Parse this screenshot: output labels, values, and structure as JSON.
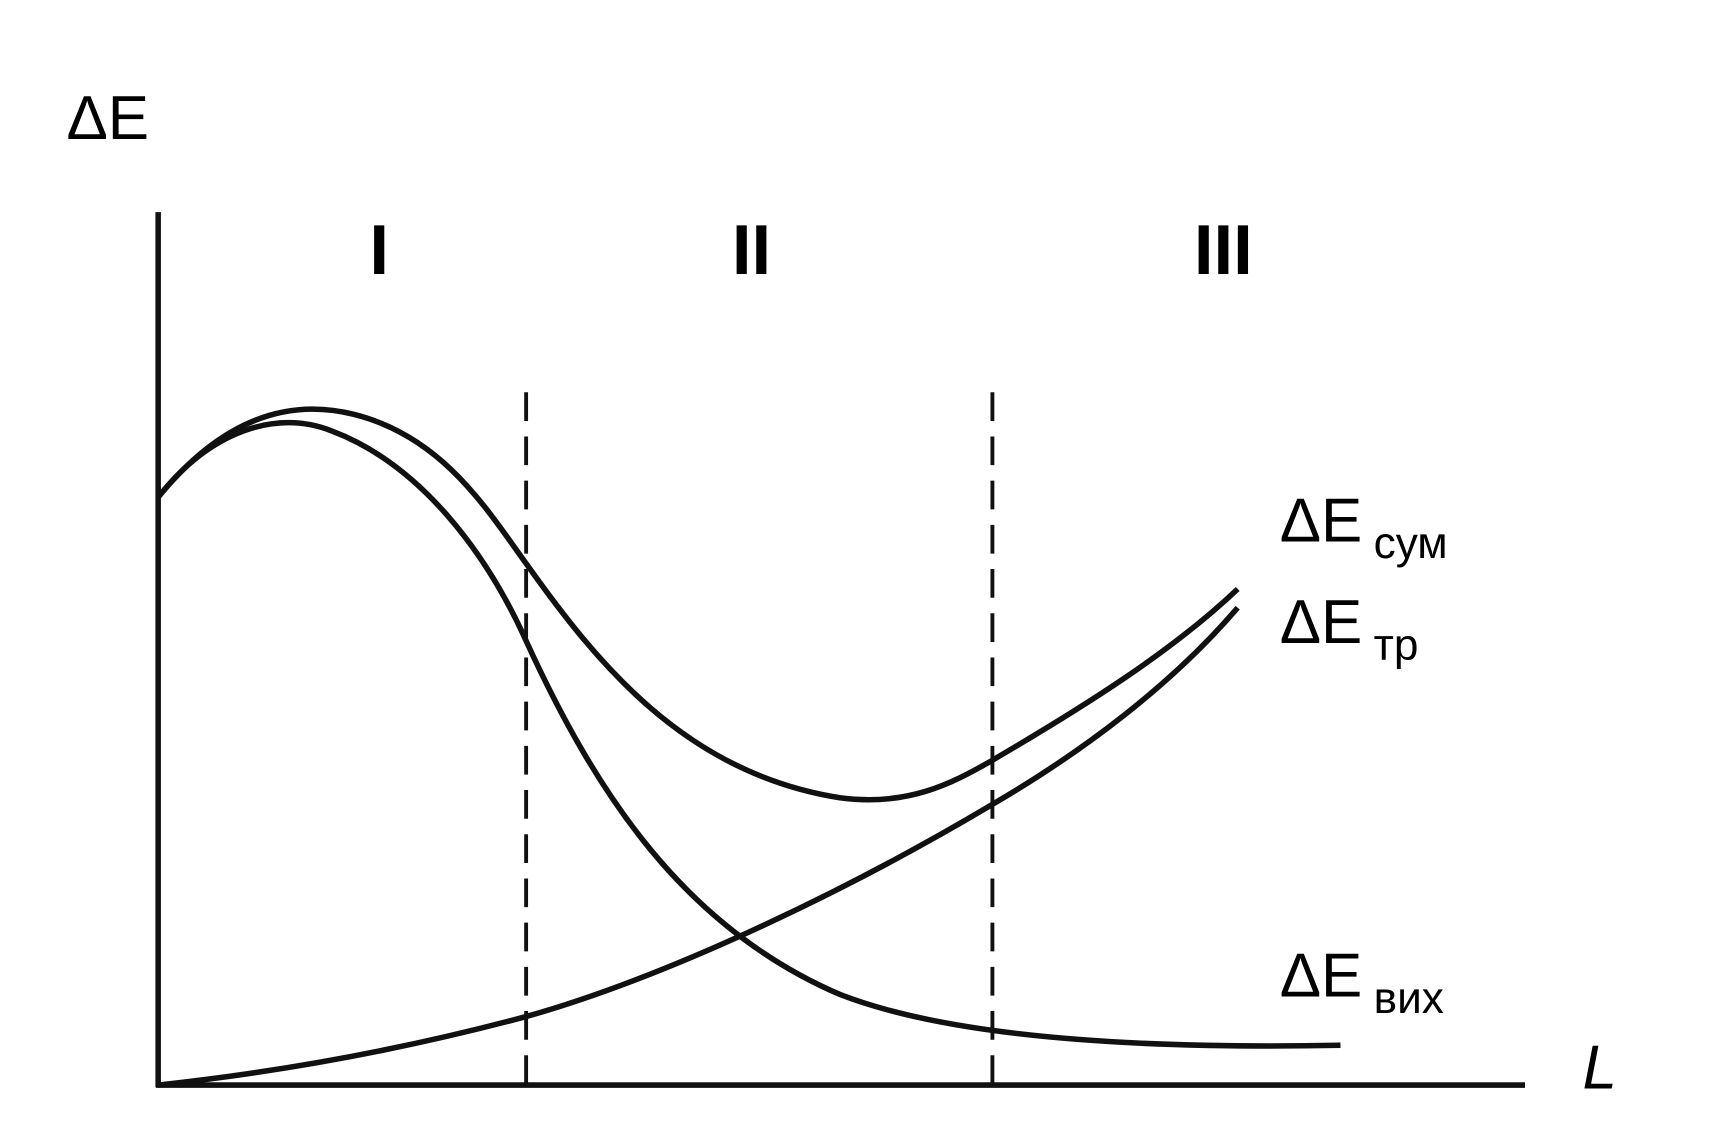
{
  "axes": {
    "y_label": "ΔE",
    "x_label": "L"
  },
  "zones": [
    "I",
    "II",
    "III"
  ],
  "curves": [
    {
      "symbol": "ΔE",
      "subscript": "сум"
    },
    {
      "symbol": "ΔE",
      "subscript": "тр"
    },
    {
      "symbol": "ΔE",
      "subscript": "вих"
    }
  ]
}
